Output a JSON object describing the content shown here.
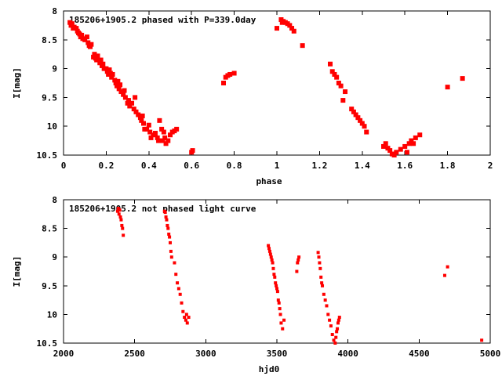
{
  "chart_data": [
    {
      "type": "scatter",
      "title": "185206+1905.2 phased with P=339.0day",
      "xlabel": "phase",
      "ylabel": "I[mag]",
      "xlim": [
        0,
        2
      ],
      "ylim": [
        8,
        10.5
      ],
      "y_inverted": true,
      "xticks": [
        "0",
        "0.2",
        "0.4",
        "0.6",
        "0.8",
        "1",
        "1.2",
        "1.4",
        "1.6",
        "1.8",
        "2"
      ],
      "yticks": [
        "8",
        "8.5",
        "9",
        "9.5",
        "10",
        "10.5"
      ],
      "marker_color": "#ff0000",
      "grid": false,
      "x": [
        0.03,
        0.035,
        0.04,
        0.045,
        0.05,
        0.06,
        0.065,
        0.07,
        0.075,
        0.08,
        0.085,
        0.09,
        0.1,
        0.11,
        0.115,
        0.12,
        0.125,
        0.13,
        0.14,
        0.145,
        0.15,
        0.155,
        0.16,
        0.17,
        0.175,
        0.18,
        0.185,
        0.19,
        0.2,
        0.205,
        0.21,
        0.215,
        0.22,
        0.225,
        0.23,
        0.24,
        0.245,
        0.25,
        0.255,
        0.26,
        0.265,
        0.27,
        0.28,
        0.285,
        0.29,
        0.3,
        0.305,
        0.31,
        0.32,
        0.33,
        0.335,
        0.34,
        0.35,
        0.36,
        0.365,
        0.37,
        0.375,
        0.38,
        0.39,
        0.4,
        0.405,
        0.41,
        0.42,
        0.43,
        0.44,
        0.445,
        0.45,
        0.46,
        0.465,
        0.47,
        0.475,
        0.48,
        0.49,
        0.5,
        0.51,
        0.52,
        0.53,
        0.6,
        0.605,
        0.75,
        0.76,
        0.77,
        0.78,
        0.8,
        1.0,
        1.02,
        1.025,
        1.03,
        1.04,
        1.05,
        1.06,
        1.07,
        1.08,
        1.12,
        1.25,
        1.26,
        1.27,
        1.28,
        1.29,
        1.3,
        1.31,
        1.32,
        1.35,
        1.36,
        1.37,
        1.38,
        1.39,
        1.4,
        1.41,
        1.42,
        1.5,
        1.51,
        1.52,
        1.53,
        1.54,
        1.55,
        1.56,
        1.58,
        1.6,
        1.61,
        1.62,
        1.63,
        1.64,
        1.65,
        1.67,
        1.8,
        1.87
      ],
      "y": [
        8.2,
        8.25,
        8.22,
        8.3,
        8.28,
        8.3,
        8.35,
        8.38,
        8.4,
        8.45,
        8.42,
        8.48,
        8.5,
        8.45,
        8.55,
        8.6,
        8.62,
        8.58,
        8.8,
        8.75,
        8.82,
        8.85,
        8.78,
        8.9,
        8.85,
        8.95,
        8.92,
        9.0,
        9.0,
        9.05,
        9.1,
        9.02,
        9.08,
        9.15,
        9.1,
        9.2,
        9.25,
        9.3,
        9.22,
        9.35,
        9.28,
        9.4,
        9.45,
        9.38,
        9.5,
        9.6,
        9.55,
        9.65,
        9.6,
        9.7,
        9.5,
        9.75,
        9.8,
        9.85,
        9.9,
        9.82,
        9.95,
        10.05,
        10.05,
        9.98,
        10.1,
        10.2,
        10.15,
        10.12,
        10.2,
        10.25,
        9.9,
        10.05,
        10.25,
        10.1,
        10.2,
        10.3,
        10.25,
        10.15,
        10.1,
        10.08,
        10.05,
        10.45,
        10.42,
        9.25,
        9.15,
        9.12,
        9.1,
        9.08,
        8.3,
        8.15,
        8.2,
        8.18,
        8.2,
        8.22,
        8.25,
        8.3,
        8.35,
        8.6,
        8.92,
        9.05,
        9.1,
        9.15,
        9.25,
        9.3,
        9.55,
        9.4,
        9.7,
        9.75,
        9.8,
        9.85,
        9.9,
        9.95,
        10.0,
        10.1,
        10.35,
        10.3,
        10.38,
        10.42,
        10.48,
        10.5,
        10.45,
        10.4,
        10.35,
        10.45,
        10.3,
        10.25,
        10.3,
        10.2,
        10.15,
        9.32,
        9.17
      ]
    },
    {
      "type": "scatter",
      "title": "185206+1905.2 not phased light curve",
      "xlabel": "hjd0",
      "ylabel": "I[mag]",
      "xlim": [
        2000,
        5000
      ],
      "ylim": [
        8,
        10.5
      ],
      "y_inverted": true,
      "xticks": [
        "2000",
        "2500",
        "3000",
        "3500",
        "4000",
        "4500",
        "5000"
      ],
      "yticks": [
        "8",
        "8.5",
        "9",
        "9.5",
        "10",
        "10.5"
      ],
      "marker_color": "#ff0000",
      "grid": false,
      "x": [
        2380,
        2385,
        2390,
        2395,
        2400,
        2405,
        2410,
        2415,
        2420,
        2710,
        2715,
        2720,
        2725,
        2730,
        2735,
        2740,
        2745,
        2750,
        2755,
        2760,
        2780,
        2790,
        2800,
        2810,
        2820,
        2830,
        2840,
        2850,
        2860,
        2865,
        2870,
        2880,
        3440,
        3445,
        3450,
        3455,
        3460,
        3465,
        3470,
        3475,
        3480,
        3485,
        3490,
        3495,
        3500,
        3505,
        3510,
        3515,
        3520,
        3525,
        3530,
        3540,
        3550,
        3640,
        3645,
        3650,
        3655,
        3790,
        3795,
        3800,
        3805,
        3810,
        3815,
        3820,
        3830,
        3840,
        3850,
        3860,
        3870,
        3880,
        3890,
        3900,
        3910,
        3915,
        3920,
        3925,
        3930,
        3935,
        3940,
        4680,
        4700,
        4940
      ],
      "y": [
        8.2,
        8.15,
        8.25,
        8.18,
        8.3,
        8.35,
        8.45,
        8.5,
        8.62,
        8.2,
        8.22,
        8.3,
        8.35,
        8.45,
        8.5,
        8.6,
        8.65,
        8.75,
        8.9,
        9.0,
        9.1,
        9.3,
        9.45,
        9.55,
        9.65,
        9.8,
        9.95,
        10.05,
        10.1,
        10.0,
        10.15,
        10.05,
        8.8,
        8.85,
        8.9,
        8.95,
        9.0,
        9.05,
        9.1,
        9.2,
        9.3,
        9.35,
        9.45,
        9.5,
        9.55,
        9.6,
        9.75,
        9.8,
        9.9,
        10.0,
        10.15,
        10.25,
        10.1,
        9.25,
        9.1,
        9.05,
        9.0,
        8.92,
        9.0,
        9.1,
        9.2,
        9.35,
        9.45,
        9.5,
        9.65,
        9.75,
        9.85,
        10.0,
        10.1,
        10.2,
        10.35,
        10.45,
        10.5,
        10.4,
        10.3,
        10.25,
        10.15,
        10.1,
        10.05,
        9.32,
        9.17,
        10.45
      ]
    }
  ]
}
